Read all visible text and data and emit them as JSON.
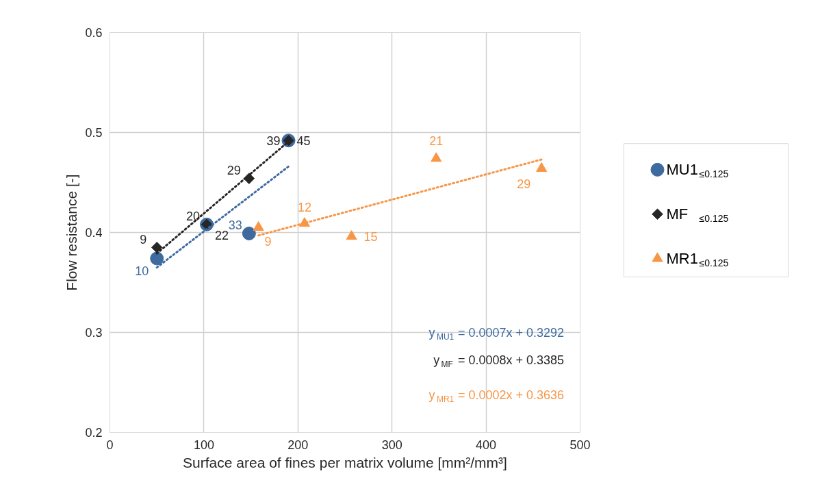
{
  "chart_data": {
    "type": "scatter",
    "xlabel": "Surface area of fines per matrix volume [mm²/mm³]",
    "ylabel": "Flow resistance [-]",
    "xlim": [
      0,
      500
    ],
    "xticks": [
      0,
      100,
      200,
      300,
      400,
      500
    ],
    "ylim": [
      0.2,
      0.6
    ],
    "yticks": [
      0.2,
      0.3,
      0.4,
      0.5,
      0.6
    ],
    "grid": true,
    "legend": "right",
    "series": [
      {
        "name": "MU1$_{≤0.125}$",
        "marker": "circle",
        "color": "#3e6aa0",
        "x": [
          50,
          103,
          148,
          190
        ],
        "values": [
          0.374,
          0.408,
          0.399,
          0.492
        ]
      },
      {
        "name": "MF  $_{≤0.125}$",
        "marker": "diamond",
        "color": "#262626",
        "x": [
          50,
          103,
          148,
          190
        ],
        "values": [
          0.385,
          0.408,
          0.454,
          0.492
        ]
      },
      {
        "name": "MR1$_{≤0.125}$",
        "marker": "triangle",
        "color": "#f79646",
        "x": [
          158,
          207,
          257,
          347,
          459
        ],
        "values": [
          0.405,
          0.409,
          0.396,
          0.474,
          0.464
        ]
      },
      {
        "type": "line",
        "line_style": "dotted",
        "marker": "none",
        "color": "#3e6aa0",
        "x": [
          50,
          190
        ],
        "values": [
          0.365,
          0.466
        ]
      },
      {
        "type": "line",
        "line_style": "dotted",
        "marker": "none",
        "color": "#262626",
        "x": [
          50,
          190
        ],
        "values": [
          0.379,
          0.491
        ]
      },
      {
        "type": "line",
        "line_style": "dotted",
        "marker": "none",
        "color": "#f79646",
        "x": [
          158,
          459
        ],
        "values": [
          0.397,
          0.473
        ]
      }
    ],
    "annotations": [
      "y$_{MU1}$ = 0.0007x + 0.3292",
      "y$_{MF}$ = 0.0008x + 0.3385",
      "y$_{MR1}$ = 0.0002x + 0.3636",
      {
        "text": "10",
        "x": 50,
        "y": 0.374
      },
      {
        "text": "22",
        "x": 103,
        "y": 0.408
      },
      {
        "text": "33",
        "x": 148,
        "y": 0.399
      },
      {
        "text": "45",
        "x": 190,
        "y": 0.492
      },
      {
        "text": "9",
        "x": 50,
        "y": 0.385
      },
      {
        "text": "20",
        "x": 103,
        "y": 0.408
      },
      {
        "text": "29",
        "x": 148,
        "y": 0.454
      },
      {
        "text": "39",
        "x": 190,
        "y": 0.492
      },
      {
        "text": "9",
        "x": 158,
        "y": 0.405
      },
      {
        "text": "12",
        "x": 207,
        "y": 0.409
      },
      {
        "text": "15",
        "x": 257,
        "y": 0.396
      },
      {
        "text": "21",
        "x": 347,
        "y": 0.474
      },
      {
        "text": "29",
        "x": 459,
        "y": 0.464
      }
    ]
  }
}
